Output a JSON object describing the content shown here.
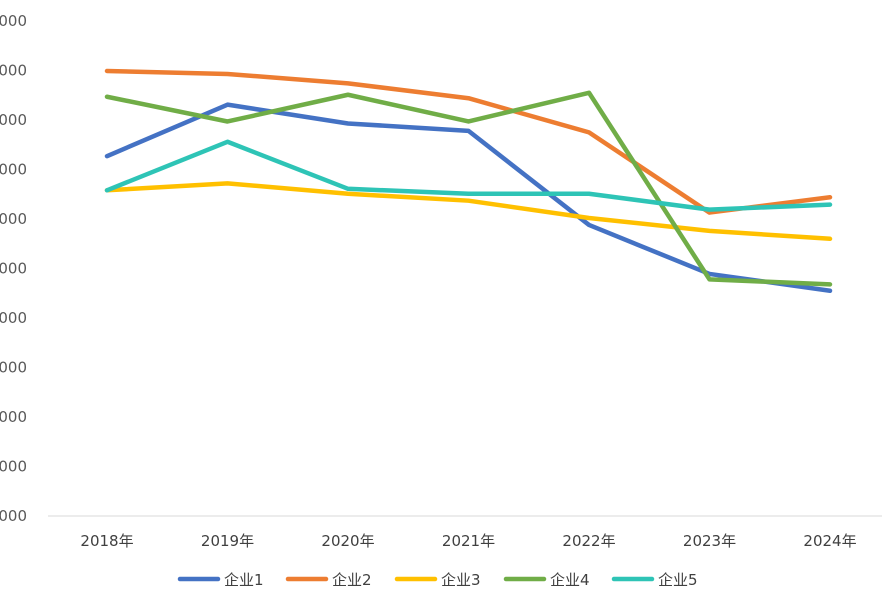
{
  "chart_data": {
    "type": "line",
    "title": "",
    "xlabel": "",
    "ylabel": "",
    "categories": [
      "2018年",
      "2019年",
      "2020年",
      "2021年",
      "2022年",
      "2023年",
      "2024年"
    ],
    "y_tick_labels": [
      "000",
      "000",
      "000",
      "000",
      "000",
      "000",
      "000",
      "000",
      "000",
      "000",
      "000"
    ],
    "ylim": [
      0,
      10
    ],
    "grid": false,
    "legend_position": "bottom",
    "series": [
      {
        "name": "企业1",
        "color": "#4472C4",
        "values": [
          7.27,
          8.31,
          7.93,
          7.78,
          5.88,
          4.89,
          4.55
        ]
      },
      {
        "name": "企业2",
        "color": "#ED7D31",
        "values": [
          8.99,
          8.93,
          8.74,
          8.44,
          7.75,
          6.13,
          6.44
        ]
      },
      {
        "name": "企业3",
        "color": "#FFC000",
        "values": [
          6.58,
          6.72,
          6.51,
          6.37,
          6.02,
          5.76,
          5.6
        ]
      },
      {
        "name": "企业4",
        "color": "#70AD47",
        "values": [
          8.47,
          7.97,
          8.51,
          7.97,
          8.55,
          4.78,
          4.68
        ]
      },
      {
        "name": "企业5",
        "color": "#2EC4B6",
        "values": [
          6.58,
          7.56,
          6.61,
          6.51,
          6.51,
          6.19,
          6.29
        ]
      }
    ]
  }
}
